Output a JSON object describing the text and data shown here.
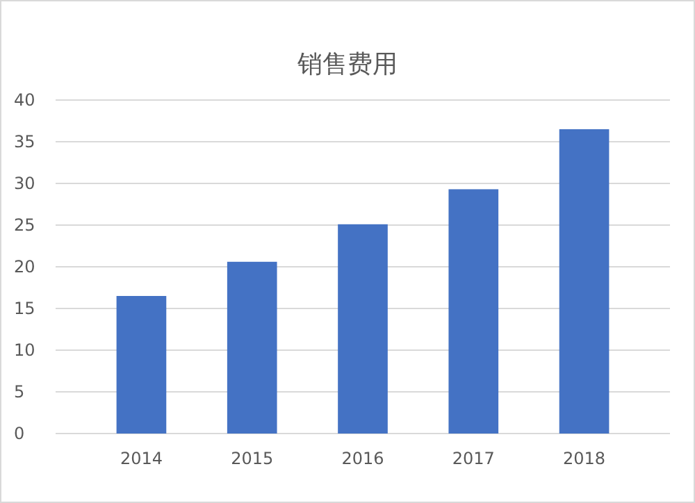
{
  "chart_data": {
    "type": "bar",
    "title": "销售费用",
    "categories": [
      "2014",
      "2015",
      "2016",
      "2017",
      "2018"
    ],
    "values": [
      16.5,
      20.6,
      25.1,
      29.3,
      36.5
    ],
    "color": "#4472c4",
    "ylim": [
      0,
      40
    ],
    "yticks": [
      0,
      5,
      10,
      15,
      20,
      25,
      30,
      35,
      40
    ],
    "grid": "y"
  }
}
